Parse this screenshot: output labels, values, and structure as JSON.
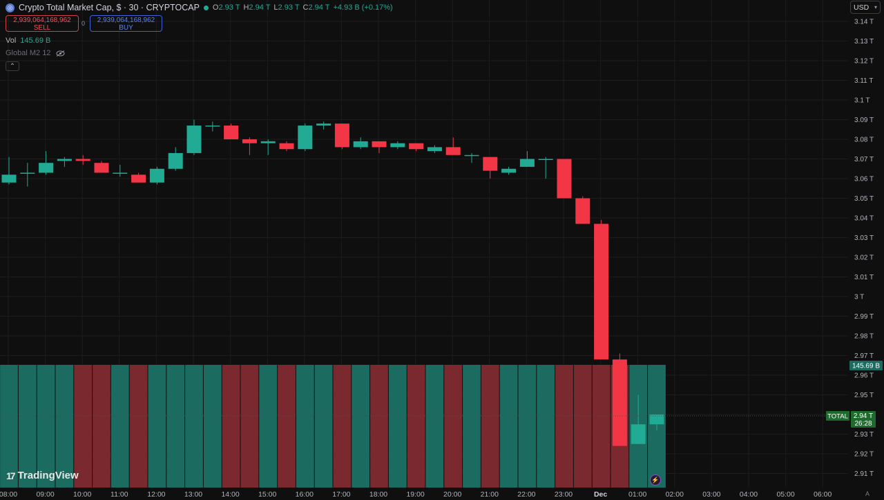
{
  "header": {
    "title": "Crypto Total Market Cap, $ · 30 · CRYPTOCAP",
    "ohlc": [
      {
        "k": "O",
        "v": "2.93 T"
      },
      {
        "k": "H",
        "v": "2.94 T"
      },
      {
        "k": "L",
        "v": "2.93 T"
      },
      {
        "k": "C",
        "v": "2.94 T"
      },
      {
        "k": "",
        "v": "+4.93 B (+0.17%)"
      }
    ]
  },
  "trade": {
    "sell_price": "2,939,064,168,962",
    "sell_label": "SELL",
    "spread": "0",
    "buy_price": "2,939,064,168,962",
    "buy_label": "BUY"
  },
  "volume": {
    "label": "Vol",
    "value": "145.69 B"
  },
  "indicator": {
    "label": "Global M2 12"
  },
  "currency": "USD",
  "brand": "TradingView",
  "autoscale": "A",
  "price_axis_labels": {
    "volume_tag": "145.69 B",
    "symbol_tag": "TOTAL",
    "price_tag": "2.94 T",
    "countdown": "26:28"
  },
  "colors": {
    "up": "#22ab94",
    "down": "#f23645",
    "vol_up": "#1b6b60",
    "vol_down": "#7a2a2e"
  },
  "chart_data": {
    "type": "candlestick",
    "y_axis_unit": "T",
    "y_ticks": [
      "3.14 T",
      "3.13 T",
      "3.12 T",
      "3.11 T",
      "3.1 T",
      "3.09 T",
      "3.08 T",
      "3.07 T",
      "3.06 T",
      "3.05 T",
      "3.04 T",
      "3.03 T",
      "3.02 T",
      "3.01 T",
      "3 T",
      "2.99 T",
      "2.98 T",
      "2.97 T",
      "2.96 T",
      "2.95 T",
      "2.94 T",
      "2.93 T",
      "2.92 T",
      "2.91 T"
    ],
    "x_ticks": [
      "08:00",
      "09:00",
      "10:00",
      "11:00",
      "12:00",
      "13:00",
      "14:00",
      "15:00",
      "16:00",
      "17:00",
      "18:00",
      "19:00",
      "20:00",
      "21:00",
      "22:00",
      "23:00",
      "Dec",
      "01:00",
      "02:00",
      "03:00",
      "04:00",
      "05:00",
      "06:00"
    ],
    "candles": [
      {
        "o": 3.058,
        "h": 3.071,
        "l": 3.057,
        "c": 3.062
      },
      {
        "o": 3.063,
        "h": 3.068,
        "l": 3.056,
        "c": 3.063
      },
      {
        "o": 3.063,
        "h": 3.074,
        "l": 3.062,
        "c": 3.068
      },
      {
        "o": 3.069,
        "h": 3.071,
        "l": 3.066,
        "c": 3.07
      },
      {
        "o": 3.07,
        "h": 3.072,
        "l": 3.067,
        "c": 3.069
      },
      {
        "o": 3.068,
        "h": 3.069,
        "l": 3.063,
        "c": 3.063
      },
      {
        "o": 3.063,
        "h": 3.067,
        "l": 3.061,
        "c": 3.063
      },
      {
        "o": 3.062,
        "h": 3.063,
        "l": 3.058,
        "c": 3.058
      },
      {
        "o": 3.058,
        "h": 3.066,
        "l": 3.057,
        "c": 3.065
      },
      {
        "o": 3.065,
        "h": 3.076,
        "l": 3.064,
        "c": 3.073
      },
      {
        "o": 3.073,
        "h": 3.09,
        "l": 3.072,
        "c": 3.087
      },
      {
        "o": 3.087,
        "h": 3.089,
        "l": 3.084,
        "c": 3.087
      },
      {
        "o": 3.087,
        "h": 3.088,
        "l": 3.08,
        "c": 3.08
      },
      {
        "o": 3.08,
        "h": 3.081,
        "l": 3.072,
        "c": 3.078
      },
      {
        "o": 3.078,
        "h": 3.08,
        "l": 3.072,
        "c": 3.079
      },
      {
        "o": 3.078,
        "h": 3.079,
        "l": 3.074,
        "c": 3.075
      },
      {
        "o": 3.075,
        "h": 3.088,
        "l": 3.074,
        "c": 3.087
      },
      {
        "o": 3.087,
        "h": 3.089,
        "l": 3.085,
        "c": 3.088
      },
      {
        "o": 3.088,
        "h": 3.088,
        "l": 3.075,
        "c": 3.076
      },
      {
        "o": 3.076,
        "h": 3.081,
        "l": 3.075,
        "c": 3.079
      },
      {
        "o": 3.079,
        "h": 3.079,
        "l": 3.073,
        "c": 3.076
      },
      {
        "o": 3.076,
        "h": 3.079,
        "l": 3.075,
        "c": 3.078
      },
      {
        "o": 3.078,
        "h": 3.078,
        "l": 3.074,
        "c": 3.075
      },
      {
        "o": 3.074,
        "h": 3.077,
        "l": 3.073,
        "c": 3.076
      },
      {
        "o": 3.076,
        "h": 3.081,
        "l": 3.072,
        "c": 3.072
      },
      {
        "o": 3.072,
        "h": 3.073,
        "l": 3.068,
        "c": 3.072
      },
      {
        "o": 3.071,
        "h": 3.071,
        "l": 3.06,
        "c": 3.064
      },
      {
        "o": 3.063,
        "h": 3.066,
        "l": 3.062,
        "c": 3.065
      },
      {
        "o": 3.066,
        "h": 3.074,
        "l": 3.066,
        "c": 3.07
      },
      {
        "o": 3.07,
        "h": 3.071,
        "l": 3.06,
        "c": 3.07
      },
      {
        "o": 3.07,
        "h": 3.07,
        "l": 3.05,
        "c": 3.05
      },
      {
        "o": 3.05,
        "h": 3.051,
        "l": 3.037,
        "c": 3.037
      },
      {
        "o": 3.037,
        "h": 3.039,
        "l": 2.968,
        "c": 2.968
      },
      {
        "o": 2.968,
        "h": 2.971,
        "l": 2.924,
        "c": 2.924
      },
      {
        "o": 2.925,
        "h": 2.95,
        "l": 2.925,
        "c": 2.935
      },
      {
        "o": 2.935,
        "h": 2.94,
        "l": 2.932,
        "c": 2.94
      }
    ]
  }
}
